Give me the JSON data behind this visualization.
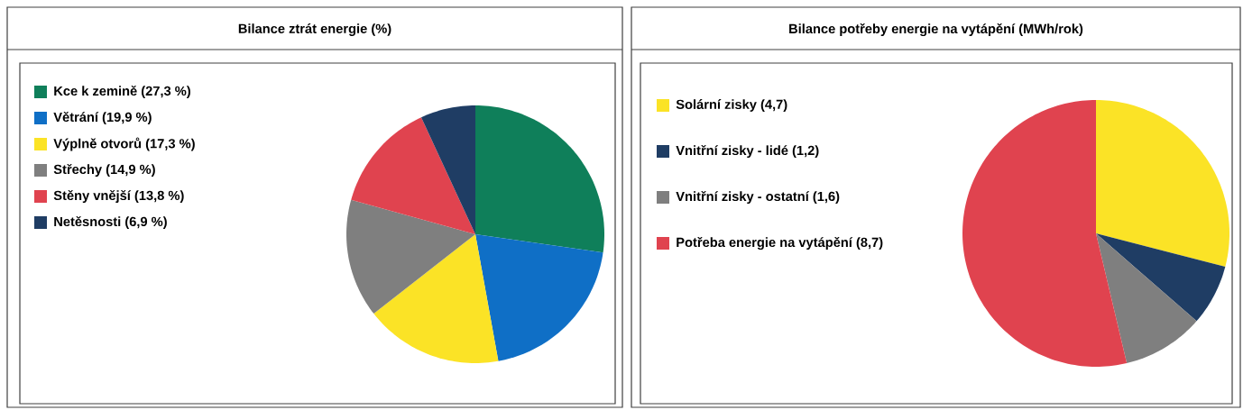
{
  "chart_data": [
    {
      "type": "pie",
      "title": "Bilance ztrát energie (%)",
      "legend": "left",
      "categories": [
        "Kce k zemině (27,3 %)",
        "Větrání (19,9 %)",
        "Výplně otvorů (17,3 %)",
        "Střechy (14,9 %)",
        "Stěny vnější (13,8 %)",
        "Netěsnosti (6,9 %)"
      ],
      "values": [
        27.3,
        19.9,
        17.3,
        14.9,
        13.8,
        6.9
      ],
      "colors": [
        "#0f7f5a",
        "#0f6fc6",
        "#fbe326",
        "#7f7f7f",
        "#e0434f",
        "#1f3d64"
      ]
    },
    {
      "type": "pie",
      "title": "Bilance potřeby energie na vytápění (MWh/rok)",
      "legend": "left",
      "categories": [
        "Solární zisky (4,7)",
        "Vnitřní zisky - lidé (1,2)",
        "Vnitřní zisky - ostatní (1,6)",
        "Potřeba energie na vytápění (8,7)"
      ],
      "values": [
        4.7,
        1.2,
        1.6,
        8.7
      ],
      "colors": [
        "#fbe326",
        "#1f3d64",
        "#7f7f7f",
        "#e0434f"
      ]
    }
  ]
}
